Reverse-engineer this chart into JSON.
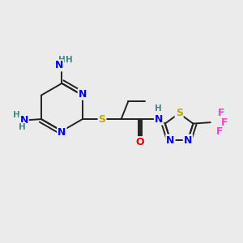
{
  "bg_color": "#ebebeb",
  "bond_color": "#222222",
  "bond_width": 1.4,
  "atom_colors": {
    "N": "#0000dd",
    "S": "#bbaa00",
    "O": "#dd0000",
    "F": "#ee44cc",
    "H": "#448888",
    "C": "#222222"
  },
  "font_size": 9.0,
  "font_size_h": 7.5
}
